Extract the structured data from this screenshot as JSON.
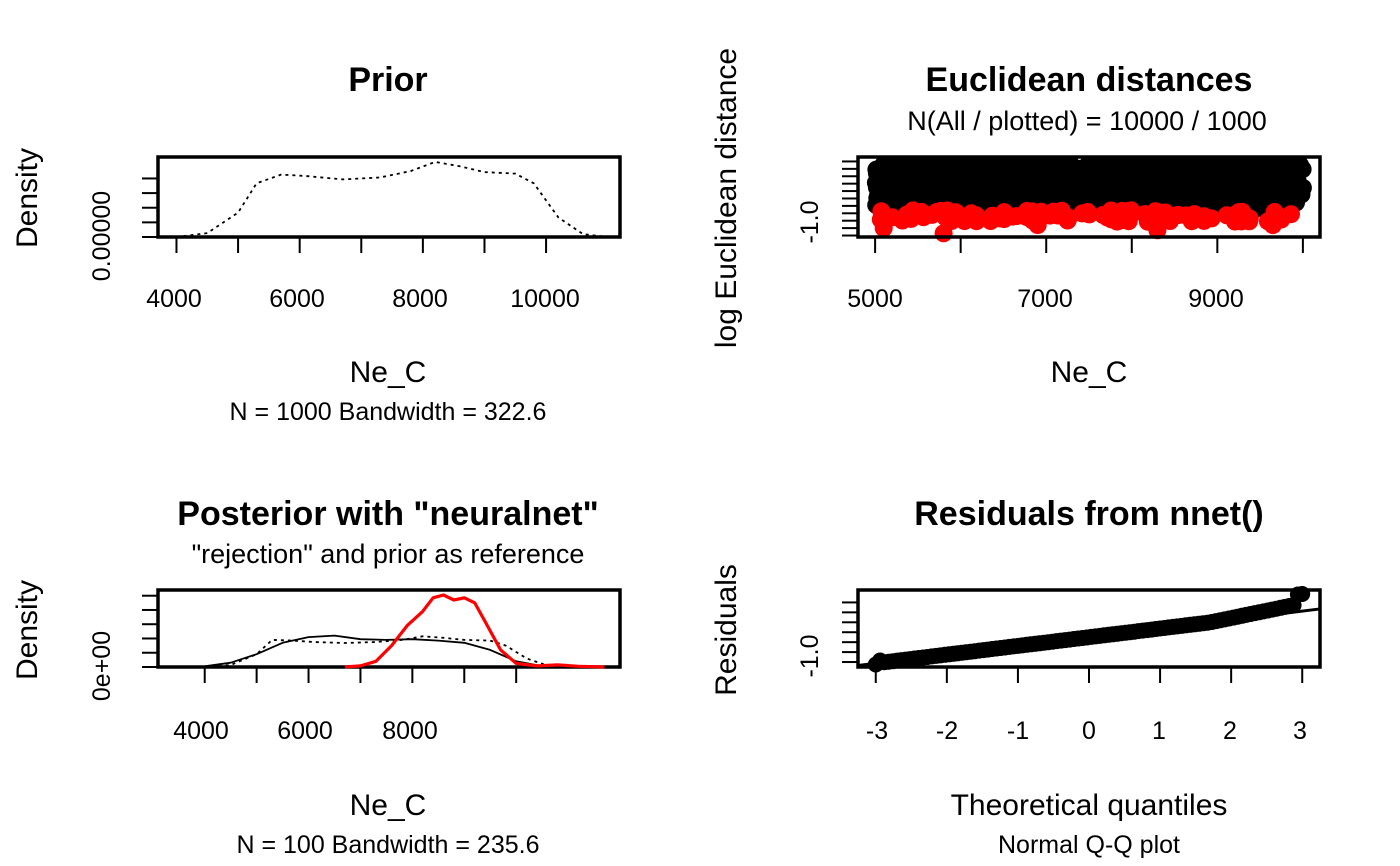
{
  "colors": {
    "ink": "#000000",
    "accepted": "#ff0000",
    "posterior": "#ff0000"
  },
  "chart_data": [
    {
      "id": "prior",
      "type": "line",
      "title": "Prior",
      "subtitle": "",
      "xlabel": "Ne_C",
      "sublabel": "N = 1000   Bandwidth = 322.6",
      "ylabel": "Density",
      "xlim": [
        3700,
        11200
      ],
      "ylim": [
        0,
        0.000164
      ],
      "x_ticks": [
        4000,
        6000,
        8000,
        10000
      ],
      "x_minor_ticks": [
        4000,
        5000,
        6000,
        7000,
        8000,
        9000,
        10000
      ],
      "y_tick_labels": [
        {
          "value": 0,
          "label": "0.00000"
        }
      ],
      "y_ticks": [
        0,
        3e-05,
        6e-05,
        9e-05,
        0.00012
      ],
      "series": [
        {
          "style": "dotted",
          "color": "#000000",
          "x": [
            4000,
            4500,
            5000,
            5300,
            5700,
            6100,
            6700,
            7300,
            7800,
            8200,
            8600,
            9000,
            9500,
            9800,
            10200,
            10600,
            11000
          ],
          "y": [
            0,
            8e-06,
            5e-05,
            0.00011,
            0.000128,
            0.000125,
            0.000118,
            0.000122,
            0.000135,
            0.000154,
            0.000145,
            0.000133,
            0.00013,
            0.00011,
            4e-05,
            6e-06,
            0
          ]
        }
      ]
    },
    {
      "id": "distances",
      "type": "scatter",
      "title": "Euclidean distances",
      "subtitle": "N(All / plotted) =  10000 / 1000",
      "xlabel": "Ne_C",
      "ylabel": "log Euclidean distance",
      "xlim": [
        4800,
        10200
      ],
      "ylim": [
        -1.6,
        3.8
      ],
      "x_ticks": [
        5000,
        7000,
        9000
      ],
      "x_minor_ticks": [
        5000,
        6000,
        7000,
        8000,
        9000,
        10000
      ],
      "y_tick_labels": [
        {
          "value": -1,
          "label": "-1.0"
        }
      ],
      "y_ticks": [
        -1.5,
        -1,
        -0.5,
        0,
        0.5,
        1,
        1.5,
        2,
        2.5,
        3,
        3.5
      ],
      "series": [
        {
          "name": "",
          "color": "#000000",
          "n": 1000,
          "x_range": [
            5000,
            10000
          ],
          "y_range": [
            0.2,
            3.7
          ]
        },
        {
          "name": "",
          "color": "#ff0000",
          "n": 100,
          "x_range": [
            5000,
            10000
          ],
          "y_range": [
            -0.6,
            0.2
          ],
          "outliers": [
            [
              5100,
              -1.0
            ],
            [
              5800,
              -1.35
            ],
            [
              8300,
              -1.15
            ],
            [
              6900,
              -0.8
            ],
            [
              9650,
              -0.8
            ]
          ]
        }
      ]
    },
    {
      "id": "posterior",
      "type": "line",
      "title": "Posterior with \"neuralnet\"",
      "subtitle": "\"rejection\" and prior as reference",
      "xlabel": "Ne_C",
      "sublabel": "N = 100   Bandwidth = 235.6",
      "ylabel": "Density",
      "xlim": [
        3100,
        12000
      ],
      "ylim": [
        0,
        0.00054
      ],
      "x_ticks": [
        4000,
        6000,
        8000
      ],
      "x_minor_ticks": [
        4000,
        5000,
        6000,
        7000,
        8000,
        9000,
        10000
      ],
      "y_tick_labels": [
        {
          "value": 0,
          "label": "0e+00"
        }
      ],
      "y_ticks": [
        0,
        0.0001,
        0.0002,
        0.0003,
        0.0004,
        0.0005
      ],
      "series": [
        {
          "style": "solid",
          "color": "#000000",
          "x": [
            3500,
            4000,
            4500,
            5000,
            5500,
            6000,
            6500,
            7000,
            7500,
            8000,
            8500,
            9000,
            9500,
            10000,
            10500,
            11000
          ],
          "y": [
            0,
            5e-06,
            3e-05,
            9e-05,
            0.00017,
            0.00021,
            0.00022,
            0.000195,
            0.00019,
            0.000195,
            0.000185,
            0.00017,
            0.00012,
            4e-05,
            6e-06,
            0
          ]
        },
        {
          "style": "dotted",
          "color": "#000000",
          "x": [
            4000,
            4500,
            5000,
            5300,
            5700,
            6100,
            6700,
            7300,
            7800,
            8200,
            8600,
            9000,
            9500,
            9800,
            10200,
            10600,
            11000
          ],
          "y": [
            0,
            1.4e-05,
            9e-05,
            0.00019,
            0.000185,
            0.000175,
            0.000168,
            0.000175,
            0.00019,
            0.000215,
            0.000205,
            0.00019,
            0.000185,
            0.00015,
            6e-05,
            1e-05,
            0
          ]
        },
        {
          "style": "solid",
          "color": "#ff0000",
          "x": [
            6700,
            7000,
            7300,
            7600,
            7900,
            8200,
            8400,
            8600,
            8800,
            9000,
            9200,
            9400,
            9700,
            10000,
            10400,
            10800,
            11200,
            11700
          ],
          "y": [
            0,
            8e-06,
            4e-05,
            0.00015,
            0.00029,
            0.00039,
            0.000485,
            0.000505,
            0.00047,
            0.000485,
            0.00045,
            0.00032,
            0.00012,
            2.5e-05,
            8e-06,
            1.5e-05,
            5e-06,
            0
          ]
        }
      ]
    },
    {
      "id": "residuals",
      "type": "scatter",
      "title": "Residuals from nnet()",
      "subtitle": "",
      "xlabel": "Theoretical quantiles",
      "sublabel": "Normal Q-Q plot",
      "ylabel": "Residuals",
      "xlim": [
        -3.25,
        3.25
      ],
      "ylim": [
        -1.1,
        0.45
      ],
      "x_ticks": [
        -3,
        -2,
        -1,
        0,
        1,
        2,
        3
      ],
      "y_tick_labels": [
        {
          "value": -1,
          "label": "-1.0"
        }
      ],
      "y_ticks": [
        -1,
        -0.8,
        -0.6,
        -0.4,
        -0.2,
        0,
        0.2
      ],
      "series": [
        {
          "name": "",
          "color": "#000000",
          "n": 100,
          "x": "normal quantiles -3 to 3"
        }
      ],
      "reference_line": {
        "slope": 0.175,
        "intercept": -0.5
      }
    }
  ]
}
